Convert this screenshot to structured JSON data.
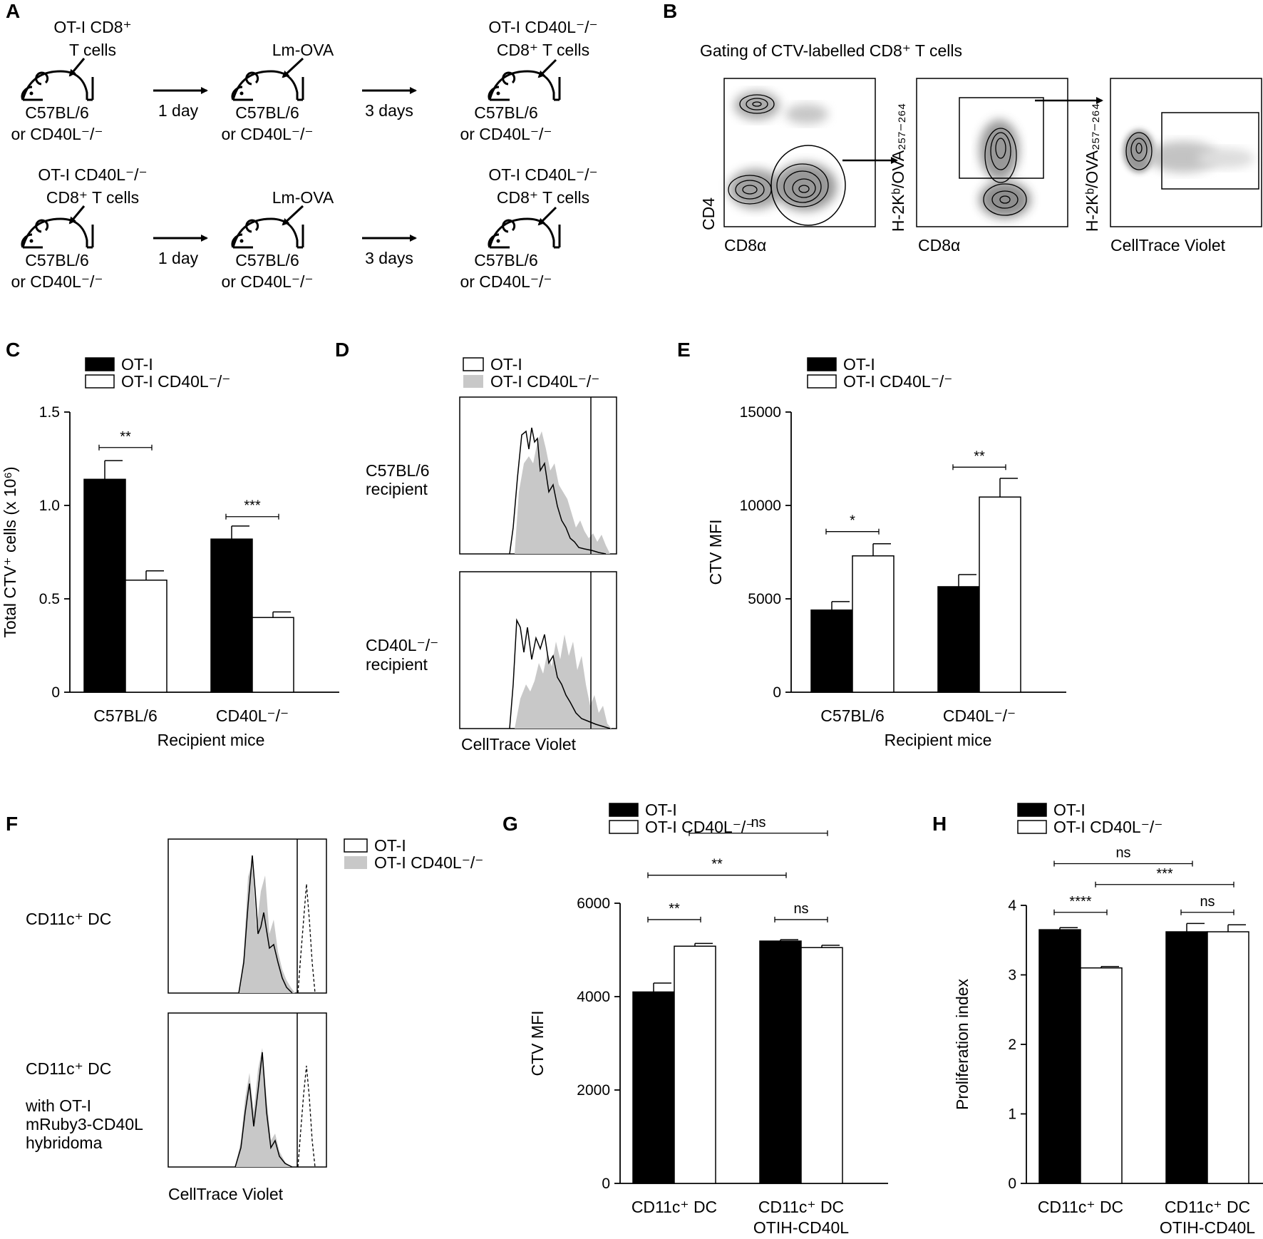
{
  "figure": {
    "panels": [
      "A",
      "B",
      "C",
      "D",
      "E",
      "F",
      "G",
      "H"
    ]
  },
  "panel_A": {
    "rows": [
      {
        "mouse1_top": [
          "OT-I CD8⁺",
          "T cells"
        ],
        "mouse1_bottom": [
          "C57BL/6",
          "or CD40L⁻/⁻"
        ],
        "arrow1": "1 day",
        "mouse2_top": [
          "",
          "Lm-OVA"
        ],
        "mouse2_bottom": [
          "C57BL/6",
          "or CD40L⁻/⁻"
        ],
        "arrow2": "3 days",
        "mouse3_top": [
          "OT-I CD40L⁻/⁻",
          "CD8⁺ T cells"
        ],
        "mouse3_bottom": [
          "C57BL/6",
          "or CD40L⁻/⁻"
        ]
      },
      {
        "mouse1_top": [
          "OT-I CD40L⁻/⁻",
          "CD8⁺ T cells"
        ],
        "mouse1_bottom": [
          "C57BL/6",
          "or CD40L⁻/⁻"
        ],
        "arrow1": "1 day",
        "mouse2_top": [
          "",
          "Lm-OVA"
        ],
        "mouse2_bottom": [
          "C57BL/6",
          "or CD40L⁻/⁻"
        ],
        "arrow2": "3 days",
        "mouse3_top": [
          "OT-I CD40L⁻/⁻",
          "CD8⁺ T cells"
        ],
        "mouse3_bottom": [
          "C57BL/6",
          "or CD40L⁻/⁻"
        ]
      }
    ]
  },
  "panel_B": {
    "title": "Gating of CTV-labelled CD8⁺ T cells",
    "plots": [
      {
        "x_label": "CD8α",
        "y_label": "CD4"
      },
      {
        "x_label": "CD8α",
        "y_label": "H-2Kᵇ/OVA₂₅₇₋₂₆₄"
      },
      {
        "x_label": "CellTrace Violet",
        "y_label": "H-2Kᵇ/OVA₂₅₇₋₂₆₄"
      }
    ]
  },
  "panel_D": {
    "legend": [
      "OT-I",
      "OT-I CD40L⁻/⁻"
    ],
    "row_labels": [
      [
        "C57BL/6",
        "recipient"
      ],
      [
        "CD40L⁻/⁻",
        "recipient"
      ]
    ],
    "x_label": "CellTrace Violet"
  },
  "panel_F": {
    "legend": [
      "OT-I",
      "OT-I CD40L⁻/⁻"
    ],
    "row_labels": [
      [
        "CD11c⁺ DC"
      ],
      [
        "CD11c⁺ DC",
        "",
        "with OT-I",
        "mRuby3-CD40L",
        "hybridoma"
      ]
    ],
    "x_label": "CellTrace Violet"
  },
  "colors": {
    "black": "#000000",
    "white": "#ffffff",
    "gray_fill": "#c8c8c8"
  },
  "chart_data": [
    {
      "panel": "C",
      "type": "bar",
      "categories": [
        "C57BL/6",
        "CD40L⁻/⁻"
      ],
      "xlabel": "Recipient mice",
      "ylabel": "Total CTV⁺ cells (x 10⁶)",
      "ylim": [
        0,
        1.5
      ],
      "yticks": [
        "0",
        "0.5",
        "1.0",
        "1.5"
      ],
      "ytick_values": [
        0,
        0.5,
        1.0,
        1.5
      ],
      "series": [
        {
          "name": "OT-I",
          "fill": "#000000",
          "values": [
            1.14,
            0.82
          ],
          "errors": [
            0.1,
            0.07
          ]
        },
        {
          "name": "OT-I CD40L⁻/⁻",
          "fill": "#ffffff",
          "values": [
            0.6,
            0.4
          ],
          "errors": [
            0.05,
            0.03
          ]
        }
      ],
      "significance": [
        {
          "label": "**",
          "from": [
            0,
            0
          ],
          "to": [
            0,
            1
          ],
          "y": 1.31
        },
        {
          "label": "***",
          "from": [
            1,
            0
          ],
          "to": [
            1,
            1
          ],
          "y": 0.94
        }
      ]
    },
    {
      "panel": "E",
      "type": "bar",
      "categories": [
        "C57BL/6",
        "CD40L⁻/⁻"
      ],
      "xlabel": "Recipient mice",
      "ylabel": "CTV MFI",
      "ylim": [
        0,
        15000
      ],
      "yticks": [
        "0",
        "5000",
        "10000",
        "15000"
      ],
      "ytick_values": [
        0,
        5000,
        10000,
        15000
      ],
      "series": [
        {
          "name": "OT-I",
          "fill": "#000000",
          "values": [
            4400,
            5650
          ],
          "errors": [
            450,
            650
          ]
        },
        {
          "name": "OT-I CD40L⁻/⁻",
          "fill": "#ffffff",
          "values": [
            7300,
            10450
          ],
          "errors": [
            650,
            1000
          ]
        }
      ],
      "significance": [
        {
          "label": "*",
          "from": [
            0,
            0
          ],
          "to": [
            0,
            1
          ],
          "y": 8600
        },
        {
          "label": "**",
          "from": [
            1,
            0
          ],
          "to": [
            1,
            1
          ],
          "y": 12050
        }
      ]
    },
    {
      "panel": "G",
      "type": "bar",
      "categories": [
        "CD11c⁺ DC",
        "CD11c⁺ DC OTIH-CD40L"
      ],
      "category_lines": [
        [
          "CD11c⁺ DC"
        ],
        [
          "CD11c⁺ DC",
          "OTIH-CD40L"
        ]
      ],
      "xlabel": "",
      "ylabel": "CTV MFI",
      "ylim": [
        0,
        6000
      ],
      "yticks": [
        "0",
        "2000",
        "4000",
        "6000"
      ],
      "ytick_values": [
        0,
        2000,
        4000,
        6000
      ],
      "series": [
        {
          "name": "OT-I",
          "fill": "#000000",
          "values": [
            4100,
            5190
          ],
          "errors": [
            190,
            30
          ]
        },
        {
          "name": "OT-I CD40L⁻/⁻",
          "fill": "#ffffff",
          "values": [
            5080,
            5050
          ],
          "errors": [
            60,
            50
          ]
        }
      ],
      "significance": [
        {
          "label": "**",
          "from": [
            0,
            0
          ],
          "to": [
            0,
            1
          ],
          "y": 5650
        },
        {
          "label": "ns",
          "from": [
            1,
            0
          ],
          "to": [
            1,
            1
          ],
          "y": 5650
        },
        {
          "label": "**",
          "from": [
            0,
            0
          ],
          "to": [
            1,
            0
          ],
          "y": 6600
        },
        {
          "label": "ns",
          "from": [
            0,
            1
          ],
          "to": [
            1,
            1
          ],
          "y": 7500
        }
      ]
    },
    {
      "panel": "H",
      "type": "bar",
      "categories": [
        "CD11c⁺ DC",
        "CD11c⁺ DC OTIH-CD40L"
      ],
      "category_lines": [
        [
          "CD11c⁺ DC"
        ],
        [
          "CD11c⁺ DC",
          "OTIH-CD40L"
        ]
      ],
      "xlabel": "",
      "ylabel": "Proliferation index",
      "ylim": [
        0,
        4
      ],
      "yticks": [
        "0",
        "1",
        "2",
        "3",
        "4"
      ],
      "ytick_values": [
        0,
        1,
        2,
        3,
        4
      ],
      "series": [
        {
          "name": "OT-I",
          "fill": "#000000",
          "values": [
            3.65,
            3.62
          ],
          "errors": [
            0.03,
            0.12
          ]
        },
        {
          "name": "OT-I CD40L⁻/⁻",
          "fill": "#ffffff",
          "values": [
            3.1,
            3.62
          ],
          "errors": [
            0.02,
            0.1
          ]
        }
      ],
      "significance": [
        {
          "label": "****",
          "from": [
            0,
            0
          ],
          "to": [
            0,
            1
          ],
          "y": 3.9
        },
        {
          "label": "ns",
          "from": [
            1,
            0
          ],
          "to": [
            1,
            1
          ],
          "y": 3.9
        },
        {
          "label": "***",
          "from": [
            0,
            1
          ],
          "to": [
            1,
            1
          ],
          "y": 4.3
        },
        {
          "label": "ns",
          "from": [
            0,
            0
          ],
          "to": [
            1,
            0
          ],
          "y": 4.6
        }
      ]
    }
  ]
}
